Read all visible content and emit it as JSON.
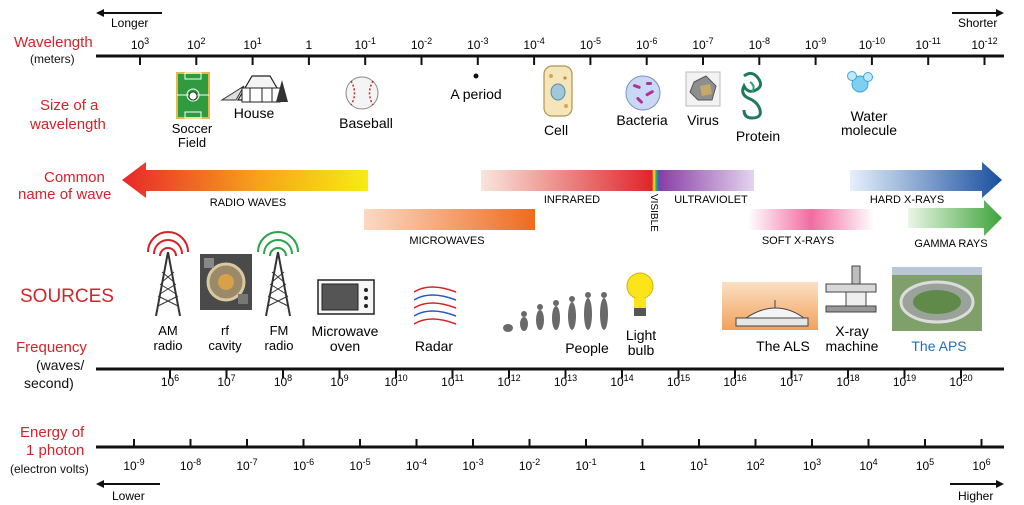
{
  "direction": {
    "longer": "Longer",
    "shorter": "Shorter",
    "lower": "Lower",
    "higher": "Higher"
  },
  "wavelength": {
    "title": "Wavelength",
    "unit": "(meters)",
    "ticks": [
      {
        "base": "10",
        "exp": "3"
      },
      {
        "base": "10",
        "exp": "2"
      },
      {
        "base": "10",
        "exp": "1"
      },
      {
        "base": "1",
        "exp": ""
      },
      {
        "base": "10",
        "exp": "-1"
      },
      {
        "base": "10",
        "exp": "-2"
      },
      {
        "base": "10",
        "exp": "-3"
      },
      {
        "base": "10",
        "exp": "-4"
      },
      {
        "base": "10",
        "exp": "-5"
      },
      {
        "base": "10",
        "exp": "-6"
      },
      {
        "base": "10",
        "exp": "-7"
      },
      {
        "base": "10",
        "exp": "-8"
      },
      {
        "base": "10",
        "exp": "-9"
      },
      {
        "base": "10",
        "exp": "-10"
      },
      {
        "base": "10",
        "exp": "-11"
      },
      {
        "base": "10",
        "exp": "-12"
      }
    ]
  },
  "size_row": {
    "title_line1": "Size of a",
    "title_line2": "wavelength",
    "items": {
      "soccer_1": "Soccer",
      "soccer_2": "Field",
      "house": "House",
      "baseball": "Baseball",
      "period": "A period",
      "cell": "Cell",
      "bacteria": "Bacteria",
      "virus": "Virus",
      "protein": "Protein",
      "water_1": "Water",
      "water_2": "molecule"
    }
  },
  "wave_names": {
    "title_line1": "Common",
    "title_line2": "name of wave",
    "radio": "RADIO WAVES",
    "microwaves": "MICROWAVES",
    "infrared": "INFRARED",
    "visible": "VISIBLE",
    "ultraviolet": "ULTRAVIOLET",
    "soft_xrays": "SOFT X-RAYS",
    "hard_xrays": "HARD X-RAYS",
    "gamma": "GAMMA RAYS"
  },
  "sources": {
    "title": "SOURCES",
    "am_1": "AM",
    "am_2": "radio",
    "rf_1": "rf",
    "rf_2": "cavity",
    "fm_1": "FM",
    "fm_2": "radio",
    "micro_1": "Microwave",
    "micro_2": "oven",
    "radar": "Radar",
    "people": "People",
    "light_1": "Light",
    "light_2": "bulb",
    "als": "The ALS",
    "xray_1": "X-ray",
    "xray_2": "machine",
    "aps": "The APS"
  },
  "frequency": {
    "title": "Frequency",
    "unit_1": "(waves/",
    "unit_2": "second)",
    "ticks": [
      {
        "base": "10",
        "exp": "6"
      },
      {
        "base": "10",
        "exp": "7"
      },
      {
        "base": "10",
        "exp": "8"
      },
      {
        "base": "10",
        "exp": "9"
      },
      {
        "base": "10",
        "exp": "10"
      },
      {
        "base": "10",
        "exp": "11"
      },
      {
        "base": "10",
        "exp": "12"
      },
      {
        "base": "10",
        "exp": "13"
      },
      {
        "base": "10",
        "exp": "14"
      },
      {
        "base": "10",
        "exp": "15"
      },
      {
        "base": "10",
        "exp": "16"
      },
      {
        "base": "10",
        "exp": "17"
      },
      {
        "base": "10",
        "exp": "18"
      },
      {
        "base": "10",
        "exp": "19"
      },
      {
        "base": "10",
        "exp": "20"
      }
    ]
  },
  "energy": {
    "title_1": "Energy of",
    "title_2": "1 photon",
    "unit": "(electron volts)",
    "ticks": [
      {
        "base": "10",
        "exp": "-9"
      },
      {
        "base": "10",
        "exp": "-8"
      },
      {
        "base": "10",
        "exp": "-7"
      },
      {
        "base": "10",
        "exp": "-6"
      },
      {
        "base": "10",
        "exp": "-5"
      },
      {
        "base": "10",
        "exp": "-4"
      },
      {
        "base": "10",
        "exp": "-3"
      },
      {
        "base": "10",
        "exp": "-2"
      },
      {
        "base": "10",
        "exp": "-1"
      },
      {
        "base": "1",
        "exp": ""
      },
      {
        "base": "10",
        "exp": "1"
      },
      {
        "base": "10",
        "exp": "2"
      },
      {
        "base": "10",
        "exp": "3"
      },
      {
        "base": "10",
        "exp": "4"
      },
      {
        "base": "10",
        "exp": "5"
      },
      {
        "base": "10",
        "exp": "6"
      }
    ]
  },
  "colors": {
    "label_red": "#d6232a",
    "aps_blue": "#1f6fb5",
    "radio_start": "#e8262b",
    "radio_end": "#f7ec13",
    "micro_start": "#fbd9c4",
    "micro_end": "#ee6b1f",
    "ir_start": "#f8e6dc",
    "ir_end": "#e0252b",
    "uv_start": "#8a3fa6",
    "uv_end": "#e4d4ef",
    "soft_x": "#f06ca0",
    "hard_start": "#e6f0fb",
    "hard_end": "#1a4fa0",
    "gamma_start": "#eaf6e6",
    "gamma_end": "#3ea33a"
  }
}
